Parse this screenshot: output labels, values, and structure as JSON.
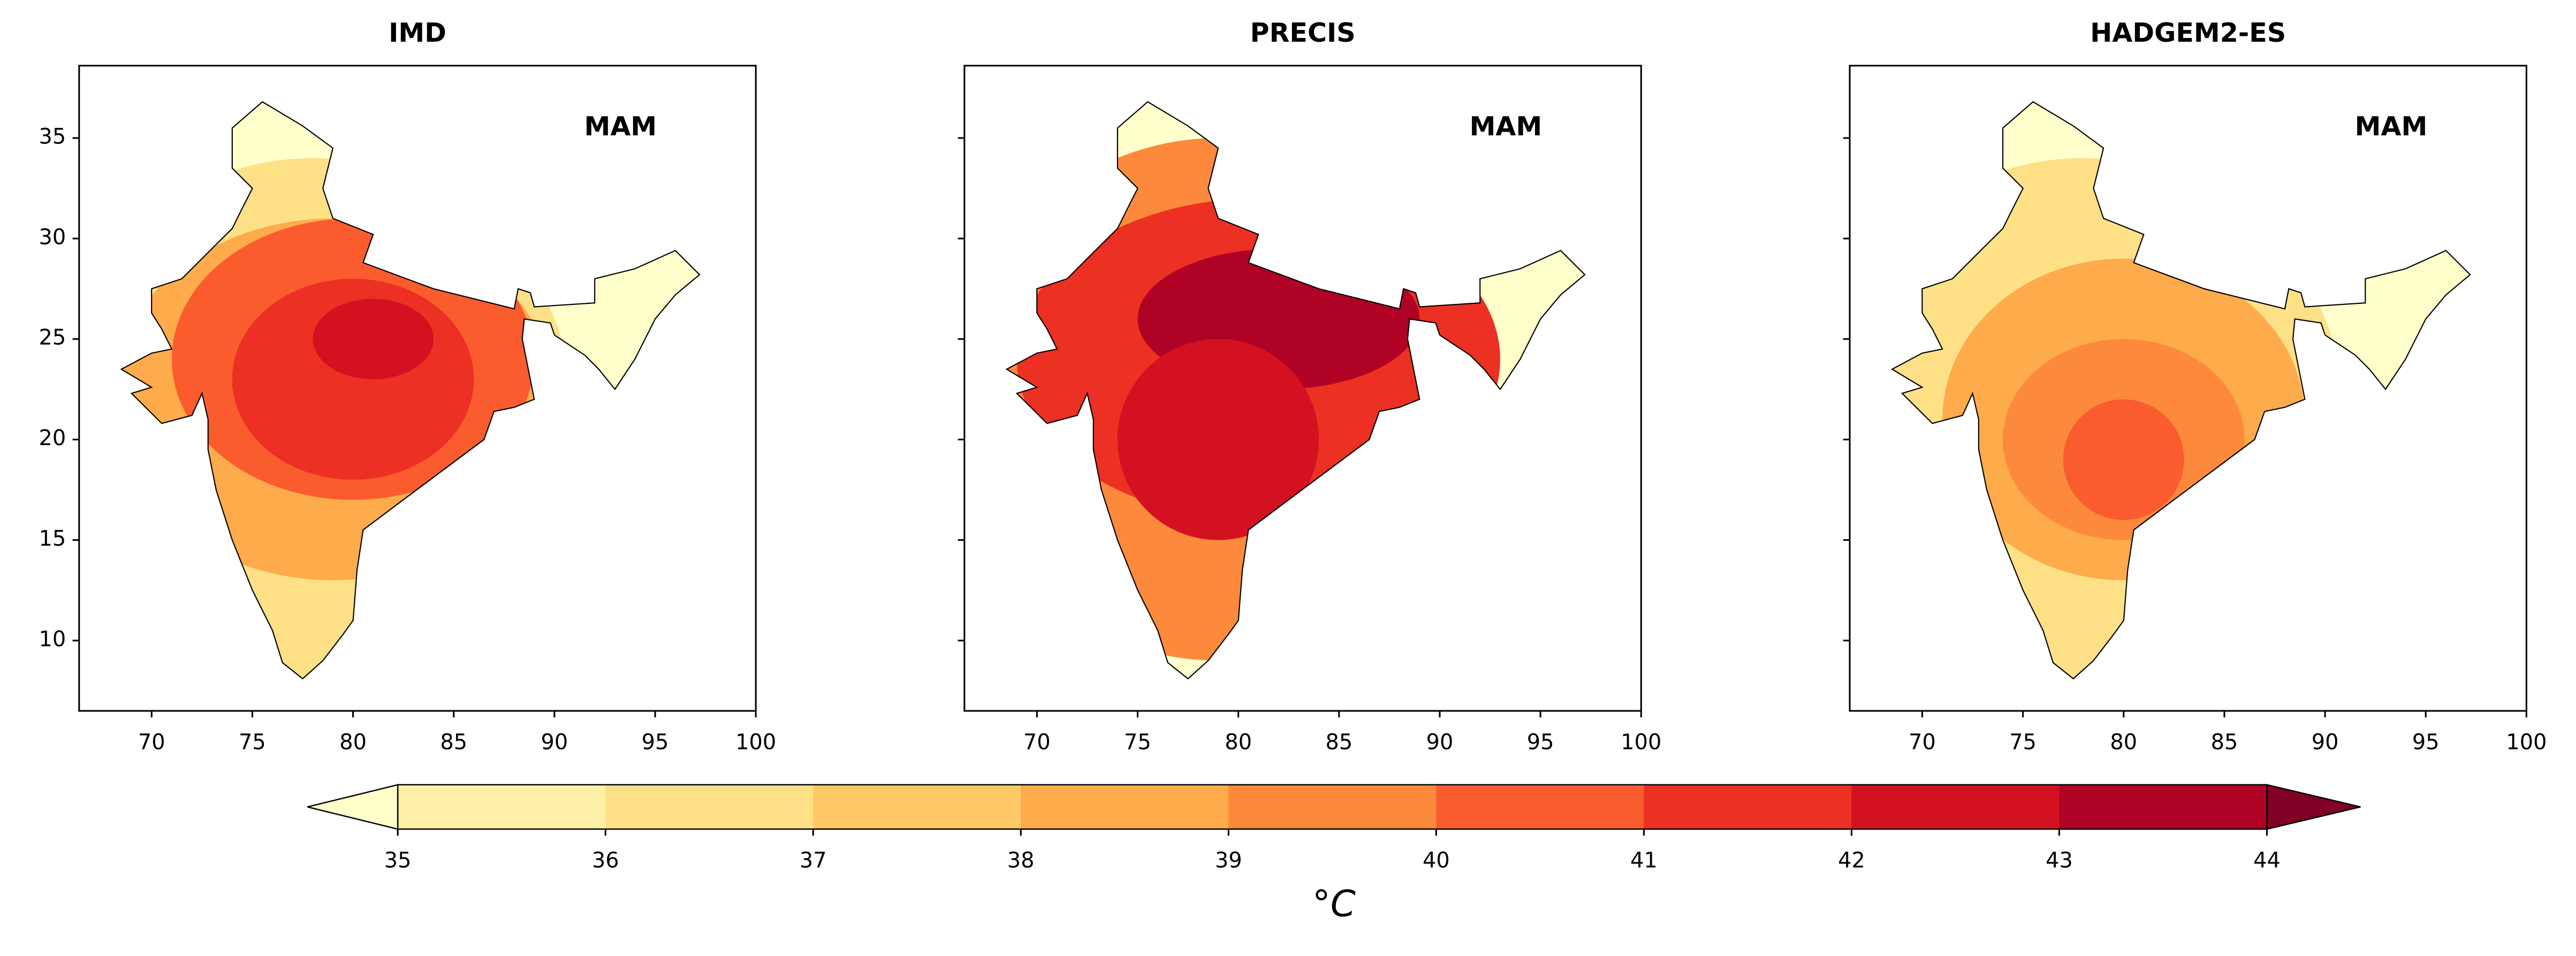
{
  "panels": [
    {
      "title": "IMD",
      "annotation": "MAM",
      "xlim": [
        66.4,
        100
      ],
      "ylim": [
        6.5,
        38.6
      ],
      "xticks": [
        70,
        75,
        80,
        85,
        90,
        95,
        100
      ],
      "yticks": [
        10,
        15,
        20,
        25,
        30,
        35
      ],
      "ytick_labels": true
    },
    {
      "title": "PRECIS",
      "annotation": "MAM",
      "xlim": [
        66.4,
        100
      ],
      "ylim": [
        6.5,
        38.6
      ],
      "xticks": [
        70,
        75,
        80,
        85,
        90,
        95,
        100
      ],
      "yticks": [
        10,
        15,
        20,
        25,
        30,
        35
      ],
      "ytick_labels": false
    },
    {
      "title": "HADGEM2-ES",
      "annotation": "MAM",
      "xlim": [
        66.4,
        100
      ],
      "ylim": [
        6.5,
        38.6
      ],
      "xticks": [
        70,
        75,
        80,
        85,
        90,
        95,
        100
      ],
      "yticks": [
        10,
        15,
        20,
        25,
        30,
        35
      ],
      "ytick_labels": false
    }
  ],
  "colorbar": {
    "ticks": [
      35,
      36,
      37,
      38,
      39,
      40,
      41,
      42,
      43,
      44
    ],
    "colors": [
      "#fff0a8",
      "#fee087",
      "#fec965",
      "#feab4b",
      "#fd893c",
      "#fa5c2e",
      "#ec3023",
      "#d31121",
      "#af0225"
    ],
    "under_color": "#ffffcc",
    "over_color": "#800026",
    "label": "°C"
  }
}
